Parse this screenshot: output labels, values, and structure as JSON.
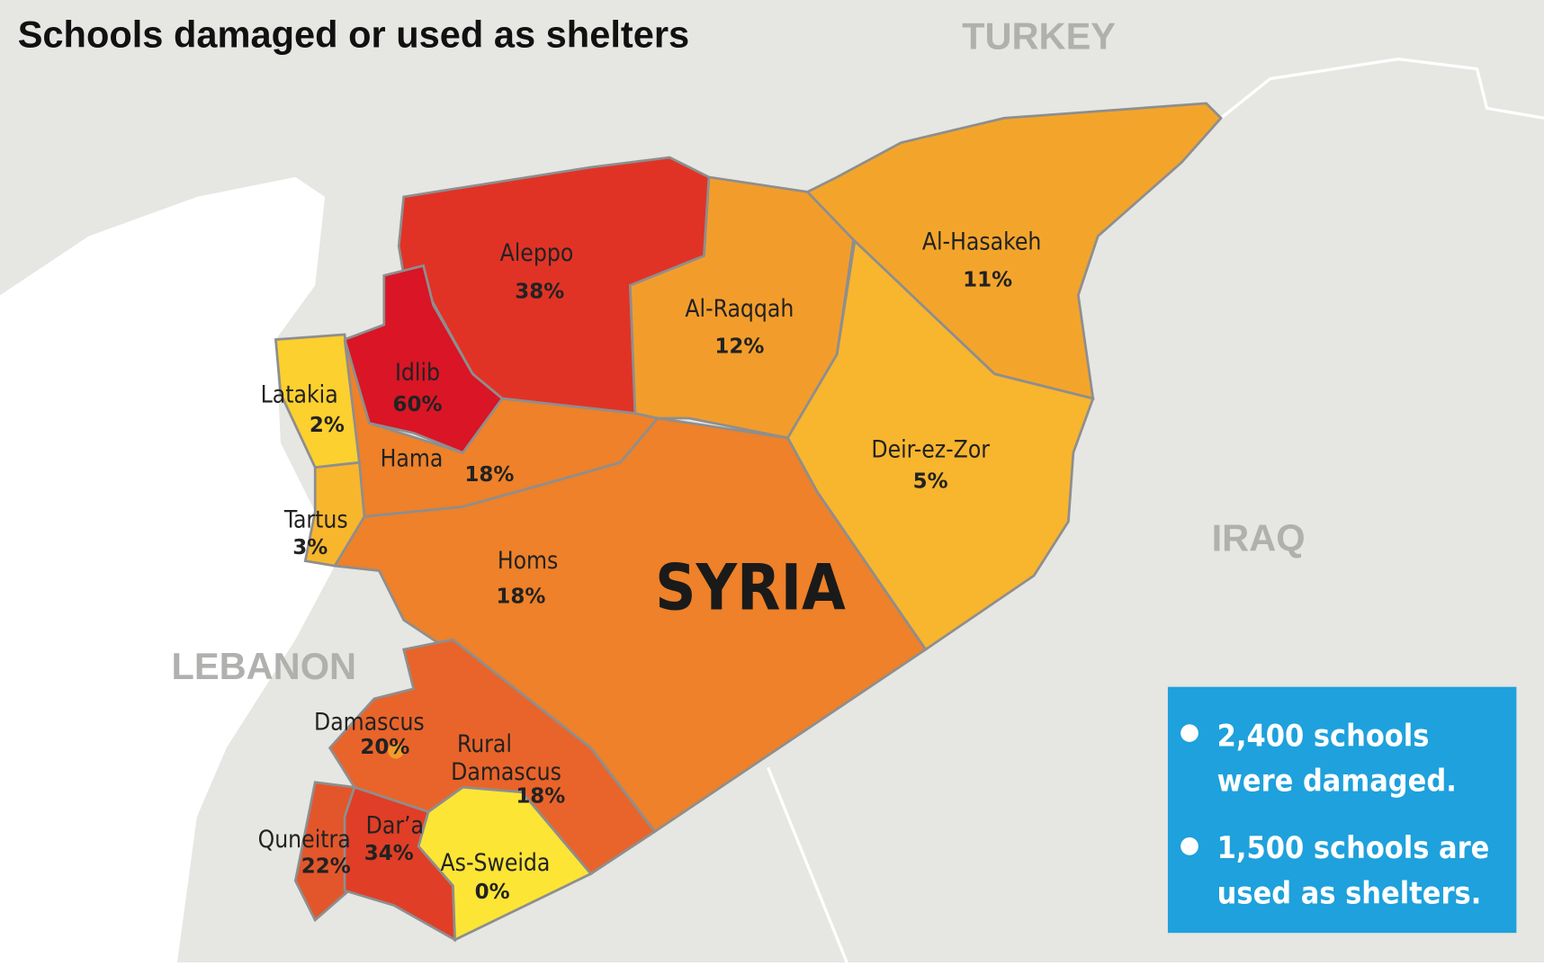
{
  "title": "Schools damaged or used as shelters",
  "countries": [
    "TURKEY",
    "IRAQ",
    "LEBANON",
    "SYRIA"
  ],
  "regions": [
    {
      "name": "Aleppo",
      "share": "38%",
      "color": "#e03326"
    },
    {
      "name": "Idlib",
      "share": "60%",
      "color": "#d91526"
    },
    {
      "name": "Latakia",
      "share": "2%",
      "color": "#fcd02e"
    },
    {
      "name": "Tartus",
      "share": "3%",
      "color": "#f8b62c"
    },
    {
      "name": "Hama",
      "share": "18%",
      "color": "#ee8129"
    },
    {
      "name": "Al-Raqqah",
      "share": "12%",
      "color": "#f29d2b"
    },
    {
      "name": "Al-Hasakeh",
      "share": "11%",
      "color": "#f3a52b"
    },
    {
      "name": "Deir-ez-Zor",
      "share": "5%",
      "color": "#f8b52e"
    },
    {
      "name": "Homs",
      "share": "18%",
      "color": "#ee8129"
    },
    {
      "name": "Rural Damascus",
      "share": "18%",
      "color": "#e9642a"
    },
    {
      "name": "Quneitra",
      "share": "22%",
      "color": "#e3562b"
    },
    {
      "name": "Dar’a",
      "share": "34%",
      "color": "#e03e26"
    },
    {
      "name": "As-Sweida",
      "share": "0%",
      "color": "#fde535"
    },
    {
      "name": "Damascus",
      "share": "20%",
      "color": "#f39c2b"
    }
  ],
  "info": [
    "2,400 schools were damaged.",
    "1,500 schools are used as shelters."
  ]
}
